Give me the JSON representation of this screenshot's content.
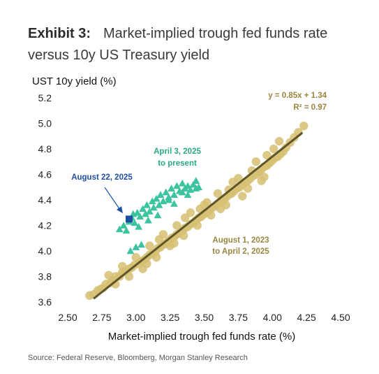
{
  "header": {
    "exhibit": "Exhibit 3:",
    "title": "Market-implied trough fed funds rate versus 10y US Treasury yield"
  },
  "source": "Source: Federal Reserve, Bloomberg, Morgan Stanley Research",
  "colors": {
    "gold": "#d6bf72",
    "gold_text": "#9a8640",
    "trend": "#5e5628",
    "green": "#3cc3a0",
    "green_text": "#2aa986",
    "highlight": "#1f4fa3"
  },
  "chart_data": {
    "type": "scatter",
    "xlabel": "Market-implied trough fed funds rate (%)",
    "ylabel": "UST 10y yield (%)",
    "xlim": [
      2.5,
      4.5
    ],
    "ylim": [
      3.6,
      5.2
    ],
    "xticks": [
      "2.50",
      "2.75",
      "3.00",
      "3.25",
      "3.50",
      "3.75",
      "4.00",
      "4.25",
      "4.50"
    ],
    "yticks": [
      "3.6",
      "3.8",
      "4.0",
      "4.2",
      "4.4",
      "4.6",
      "4.8",
      "5.0",
      "5.2"
    ],
    "grid": false,
    "series": [
      {
        "name": "August 1, 2023 to April 2, 2025",
        "marker": "circle",
        "color": "#d6bf72",
        "points": [
          [
            2.66,
            3.65
          ],
          [
            2.69,
            3.66
          ],
          [
            2.72,
            3.69
          ],
          [
            2.74,
            3.7
          ],
          [
            2.76,
            3.71
          ],
          [
            2.78,
            3.74
          ],
          [
            2.81,
            3.75
          ],
          [
            2.83,
            3.77
          ],
          [
            2.85,
            3.8
          ],
          [
            2.88,
            3.8
          ],
          [
            2.9,
            3.83
          ],
          [
            2.92,
            3.84
          ],
          [
            2.95,
            3.86
          ],
          [
            2.97,
            3.87
          ],
          [
            2.99,
            3.89
          ],
          [
            3.02,
            3.9
          ],
          [
            3.04,
            3.92
          ],
          [
            3.06,
            3.93
          ],
          [
            3.08,
            3.95
          ],
          [
            3.1,
            3.97
          ],
          [
            3.12,
            3.98
          ],
          [
            3.14,
            3.99
          ],
          [
            3.16,
            4.02
          ],
          [
            3.18,
            4.03
          ],
          [
            3.2,
            4.05
          ],
          [
            3.22,
            4.06
          ],
          [
            3.24,
            4.08
          ],
          [
            3.26,
            4.1
          ],
          [
            3.28,
            4.11
          ],
          [
            3.3,
            4.13
          ],
          [
            3.32,
            4.14
          ],
          [
            3.34,
            4.16
          ],
          [
            3.36,
            4.18
          ],
          [
            3.38,
            4.19
          ],
          [
            3.4,
            4.21
          ],
          [
            3.42,
            4.22
          ],
          [
            3.44,
            4.24
          ],
          [
            3.46,
            4.26
          ],
          [
            3.48,
            4.27
          ],
          [
            3.5,
            4.29
          ],
          [
            3.52,
            4.3
          ],
          [
            3.54,
            4.32
          ],
          [
            3.56,
            4.34
          ],
          [
            3.58,
            4.35
          ],
          [
            3.6,
            4.37
          ],
          [
            3.62,
            4.39
          ],
          [
            3.64,
            4.4
          ],
          [
            3.66,
            4.42
          ],
          [
            3.68,
            4.44
          ],
          [
            3.7,
            4.45
          ],
          [
            3.72,
            4.47
          ],
          [
            3.74,
            4.49
          ],
          [
            3.76,
            4.5
          ],
          [
            3.78,
            4.52
          ],
          [
            3.8,
            4.54
          ],
          [
            3.82,
            4.55
          ],
          [
            3.84,
            4.57
          ],
          [
            3.86,
            4.59
          ],
          [
            3.88,
            4.6
          ],
          [
            3.9,
            4.62
          ],
          [
            3.92,
            4.64
          ],
          [
            3.94,
            4.66
          ],
          [
            3.96,
            4.67
          ],
          [
            3.98,
            4.69
          ],
          [
            4.0,
            4.71
          ],
          [
            4.02,
            4.73
          ],
          [
            4.04,
            4.74
          ],
          [
            4.06,
            4.76
          ],
          [
            4.08,
            4.78
          ],
          [
            4.1,
            4.81
          ],
          [
            4.13,
            4.85
          ],
          [
            4.16,
            4.89
          ],
          [
            4.19,
            4.93
          ],
          [
            4.23,
            4.98
          ],
          [
            4.01,
            4.8
          ],
          [
            4.05,
            4.86
          ],
          [
            3.96,
            4.75
          ],
          [
            3.92,
            4.55
          ],
          [
            3.85,
            4.63
          ],
          [
            3.78,
            4.43
          ],
          [
            3.71,
            4.54
          ],
          [
            3.66,
            4.36
          ],
          [
            3.6,
            4.45
          ],
          [
            3.55,
            4.28
          ],
          [
            3.5,
            4.36
          ],
          [
            3.45,
            4.2
          ],
          [
            3.4,
            4.3
          ],
          [
            3.35,
            4.12
          ],
          [
            3.3,
            4.2
          ],
          [
            3.25,
            4.04
          ],
          [
            3.2,
            4.13
          ],
          [
            3.15,
            3.95
          ],
          [
            3.1,
            4.04
          ],
          [
            3.05,
            3.86
          ],
          [
            3.0,
            3.95
          ],
          [
            2.95,
            3.8
          ],
          [
            2.9,
            3.88
          ],
          [
            2.85,
            3.74
          ],
          [
            2.8,
            3.81
          ],
          [
            3.47,
            4.33
          ],
          [
            3.52,
            4.38
          ],
          [
            3.62,
            4.33
          ],
          [
            3.68,
            4.48
          ],
          [
            3.75,
            4.57
          ],
          [
            3.82,
            4.49
          ],
          [
            3.88,
            4.7
          ],
          [
            3.94,
            4.58
          ],
          [
            3.36,
            4.26
          ],
          [
            3.28,
            4.06
          ],
          [
            3.17,
            4.09
          ],
          [
            3.08,
            3.9
          ]
        ]
      },
      {
        "name": "April 3, 2025 to present",
        "marker": "triangle",
        "color": "#3cc3a0",
        "points": [
          [
            2.88,
            4.17
          ],
          [
            2.91,
            4.2
          ],
          [
            2.93,
            4.16
          ],
          [
            2.95,
            4.23
          ],
          [
            2.97,
            4.26
          ],
          [
            2.99,
            4.22
          ],
          [
            3.01,
            4.3
          ],
          [
            3.03,
            4.27
          ],
          [
            3.05,
            4.33
          ],
          [
            3.07,
            4.29
          ],
          [
            3.08,
            4.36
          ],
          [
            3.1,
            4.31
          ],
          [
            3.12,
            4.39
          ],
          [
            3.13,
            4.34
          ],
          [
            3.15,
            4.41
          ],
          [
            3.17,
            4.36
          ],
          [
            3.18,
            4.44
          ],
          [
            3.2,
            4.39
          ],
          [
            3.22,
            4.46
          ],
          [
            3.24,
            4.42
          ],
          [
            3.26,
            4.49
          ],
          [
            3.28,
            4.44
          ],
          [
            3.3,
            4.51
          ],
          [
            3.32,
            4.47
          ],
          [
            3.34,
            4.53
          ],
          [
            3.36,
            4.49
          ],
          [
            3.38,
            4.51
          ],
          [
            3.4,
            4.48
          ],
          [
            3.42,
            4.52
          ],
          [
            3.44,
            4.49
          ],
          [
            3.46,
            4.5
          ],
          [
            3.44,
            4.55
          ],
          [
            3.38,
            4.44
          ],
          [
            3.34,
            4.46
          ],
          [
            3.28,
            4.37
          ],
          [
            3.24,
            4.4
          ],
          [
            3.16,
            4.28
          ],
          [
            3.09,
            4.24
          ],
          [
            3.02,
            4.19
          ],
          [
            2.98,
            4.29
          ],
          [
            3.0,
            4.03
          ],
          [
            3.04,
            4.05
          ],
          [
            2.96,
            4.0
          ]
        ]
      }
    ],
    "highlight": {
      "label": "August 22, 2025",
      "x": 2.95,
      "y": 4.25,
      "marker": "square",
      "color": "#1f4fa3"
    },
    "trendline": {
      "slope": 0.85,
      "intercept": 1.34,
      "equation": "y = 0.85x + 1.34",
      "r_squared": "R² = 0.97",
      "x_range": [
        2.69,
        4.22
      ]
    },
    "annotations": {
      "gold_label": [
        "August 1, 2023",
        "to April 2, 2025"
      ],
      "green_label": [
        "April 3, 2025",
        "to present"
      ],
      "highlight_label": "August 22, 2025"
    }
  }
}
